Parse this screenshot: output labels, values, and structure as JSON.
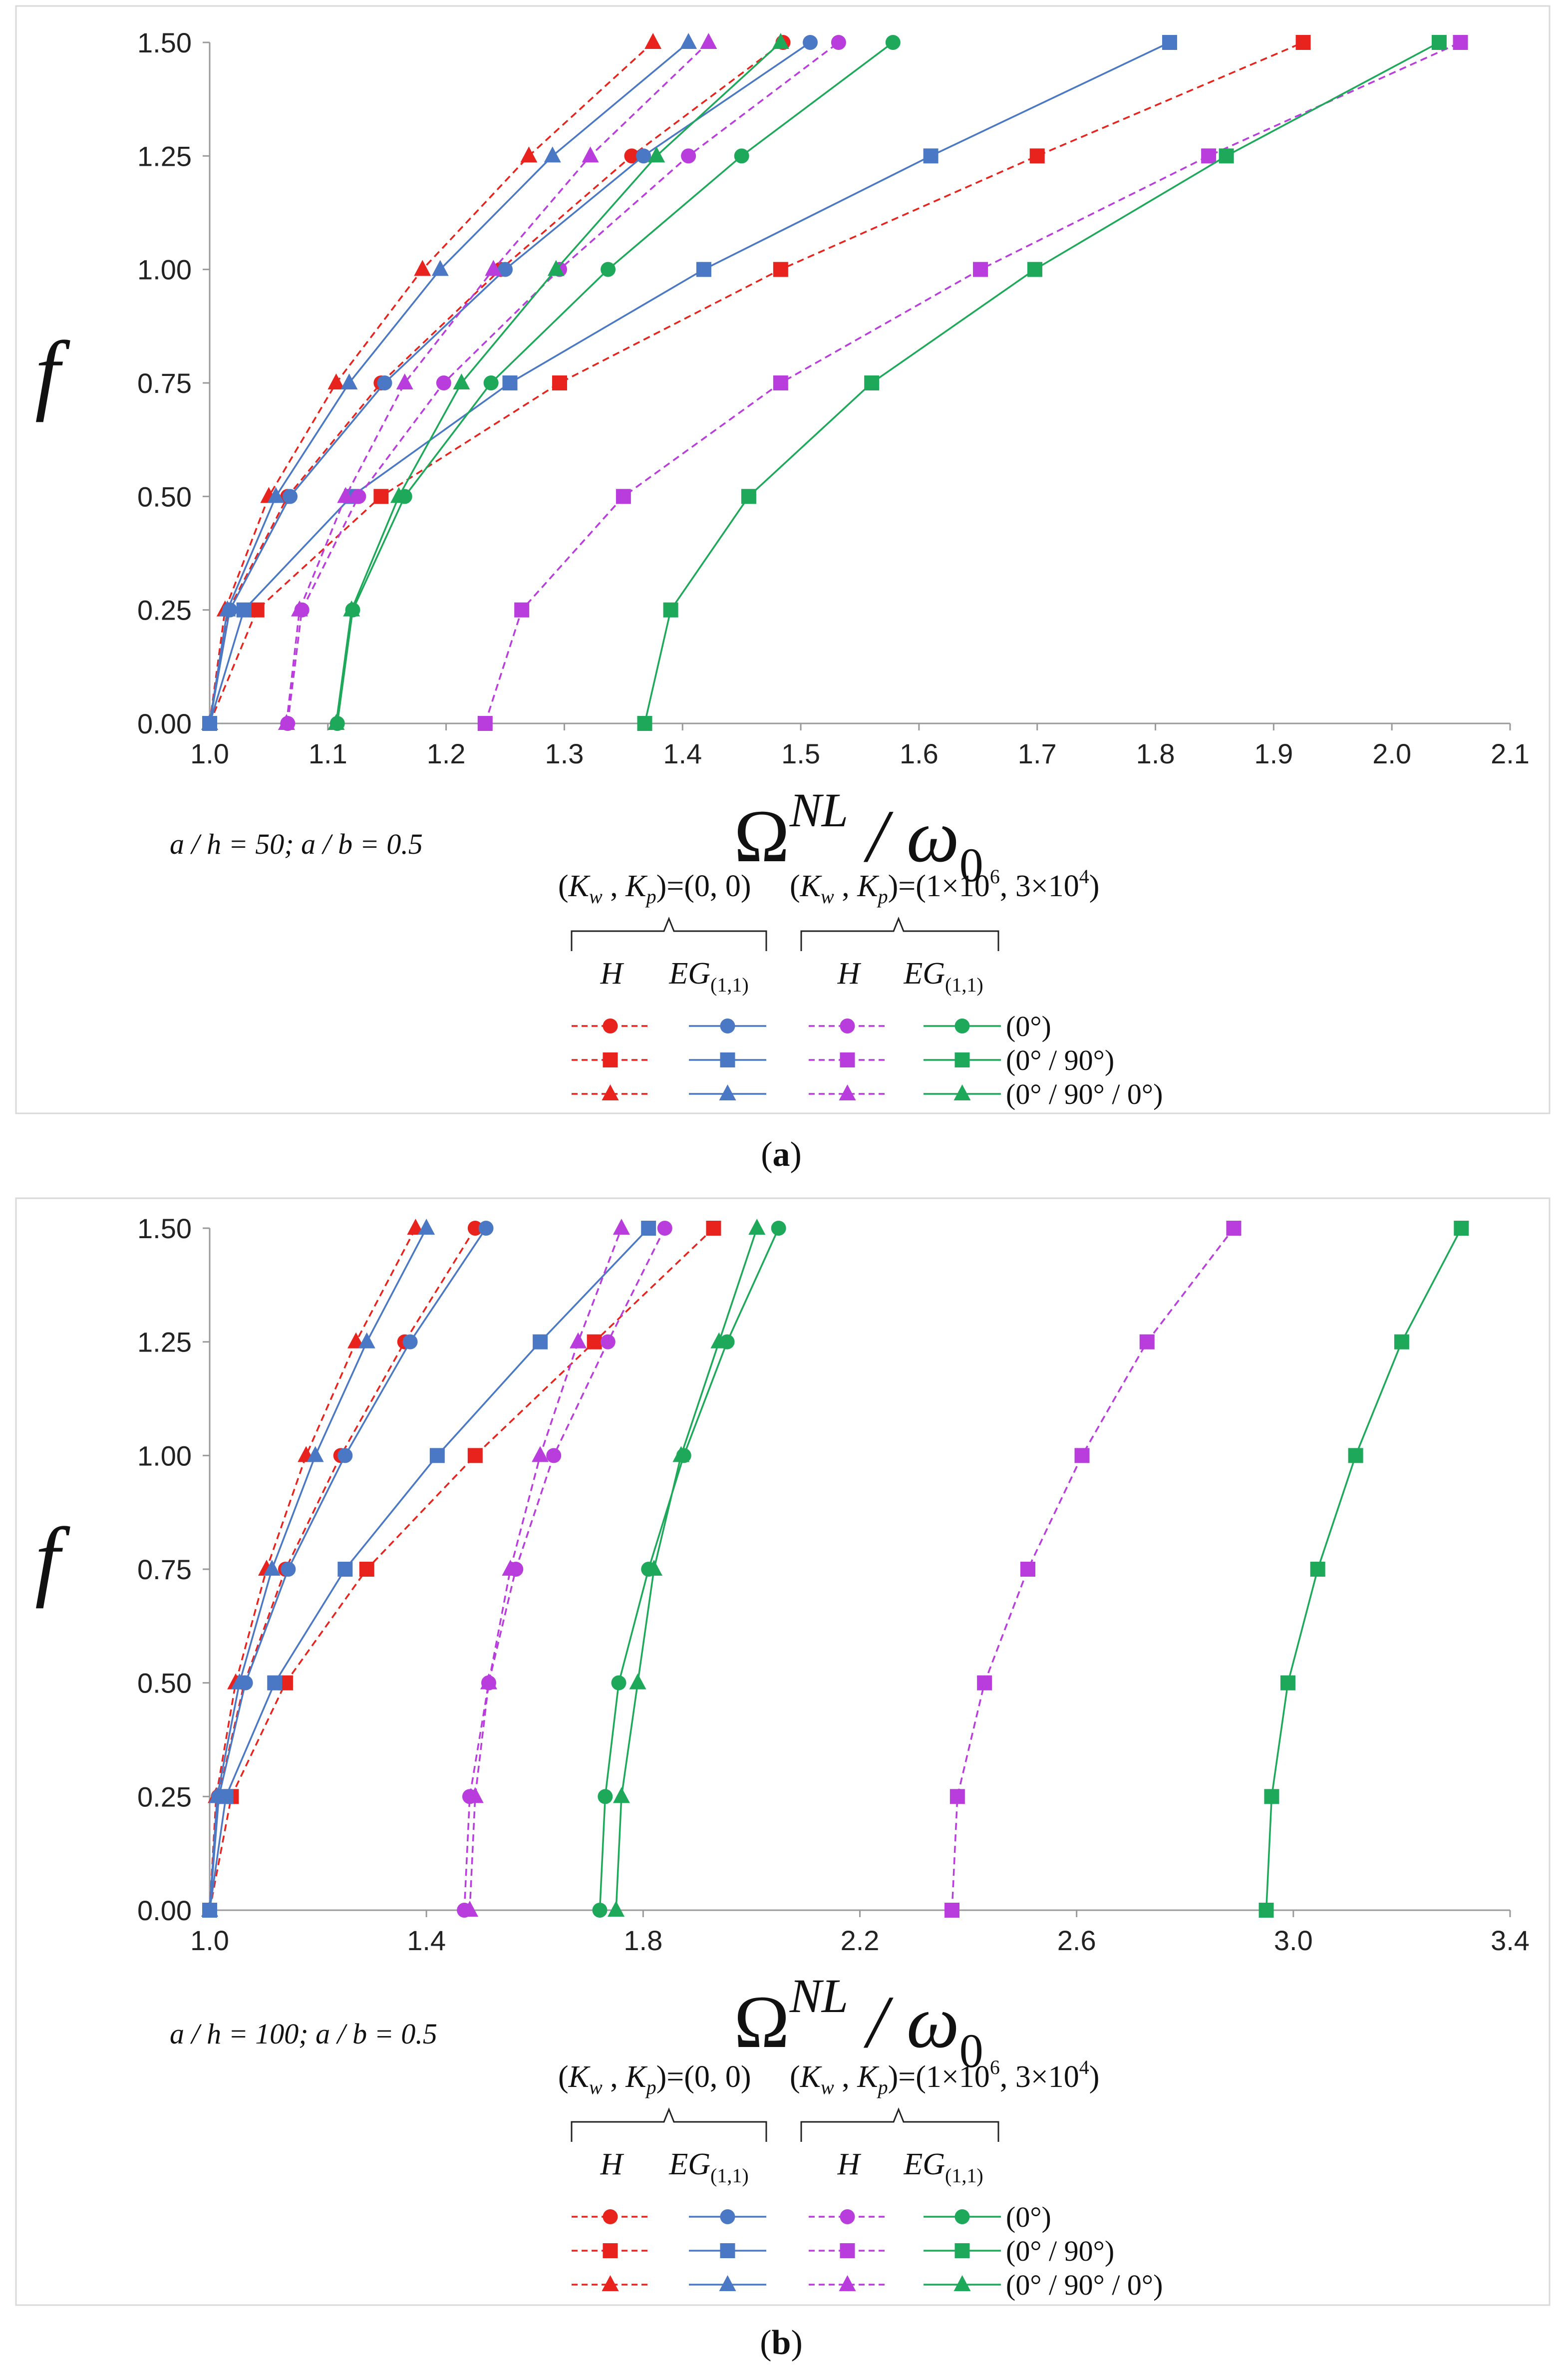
{
  "chart_data": [
    {
      "type": "line",
      "panel_label": "a",
      "xlim": [
        1.0,
        2.1
      ],
      "ylim": [
        0.0,
        1.5
      ],
      "xticks": [
        "1.0",
        "1.1",
        "1.2",
        "1.3",
        "1.4",
        "1.5",
        "1.6",
        "1.7",
        "1.8",
        "1.9",
        "2.0",
        "2.1"
      ],
      "yticks": [
        "0.00",
        "0.25",
        "0.50",
        "0.75",
        "1.00",
        "1.25",
        "1.50"
      ],
      "ylabel": "f",
      "xlabel": {
        "base": "Ω",
        "sup": "NL",
        "mid": " / ω",
        "sub": "0"
      },
      "note": "a / h = 50;  a / b = 0.5",
      "f": [
        0,
        0.25,
        0.5,
        0.75,
        1.0,
        1.25,
        1.5
      ],
      "series": [
        {
          "name": "H (Kw,Kp)=(0,0) (0°)",
          "color": "#e8231d",
          "marker": "circle",
          "dashed": true,
          "x": [
            1.0,
            1.016,
            1.066,
            1.145,
            1.246,
            1.357,
            1.485
          ]
        },
        {
          "name": "H (Kw,Kp)=(0,0) (0°/90°)",
          "color": "#e8231d",
          "marker": "square",
          "dashed": true,
          "x": [
            1.0,
            1.04,
            1.145,
            1.296,
            1.483,
            1.7,
            1.925
          ]
        },
        {
          "name": "H (Kw,Kp)=(0,0) (0°/90°/0°)",
          "color": "#e8231d",
          "marker": "triangle",
          "dashed": true,
          "x": [
            1.0,
            1.013,
            1.05,
            1.107,
            1.18,
            1.27,
            1.375
          ]
        },
        {
          "name": "EG(1,1) (Kw,Kp)=(0,0) (0°)",
          "color": "#4a78c4",
          "marker": "circle",
          "dashed": false,
          "x": [
            1.0,
            1.017,
            1.068,
            1.148,
            1.25,
            1.367,
            1.508
          ]
        },
        {
          "name": "EG(1,1) (Kw,Kp)=(0,0) (0°/90°)",
          "color": "#4a78c4",
          "marker": "square",
          "dashed": false,
          "x": [
            1.0,
            1.029,
            1.12,
            1.254,
            1.418,
            1.61,
            1.812
          ]
        },
        {
          "name": "EG(1,1) (Kw,Kp)=(0,0) (0°/90°/0°)",
          "color": "#4a78c4",
          "marker": "triangle",
          "dashed": false,
          "x": [
            1.0,
            1.015,
            1.056,
            1.118,
            1.195,
            1.29,
            1.405
          ]
        },
        {
          "name": "H (Kw,Kp)=(1e6,3e4) (0°)",
          "color": "#b83ddc",
          "marker": "circle",
          "dashed": true,
          "x": [
            1.066,
            1.078,
            1.126,
            1.198,
            1.296,
            1.405,
            1.532
          ]
        },
        {
          "name": "H (Kw,Kp)=(1e6,3e4) (0°/90°)",
          "color": "#b83ddc",
          "marker": "square",
          "dashed": true,
          "x": [
            1.233,
            1.264,
            1.35,
            1.483,
            1.652,
            1.845,
            2.058
          ]
        },
        {
          "name": "H (Kw,Kp)=(1e6,3e4) (0°/90°/0°)",
          "color": "#b83ddc",
          "marker": "triangle",
          "dashed": true,
          "x": [
            1.065,
            1.076,
            1.115,
            1.165,
            1.24,
            1.322,
            1.422
          ]
        },
        {
          "name": "EG(1,1) (Kw,Kp)=(1e6,3e4) (0°)",
          "color": "#1ea95a",
          "marker": "circle",
          "dashed": false,
          "x": [
            1.108,
            1.121,
            1.165,
            1.238,
            1.337,
            1.45,
            1.578
          ]
        },
        {
          "name": "EG(1,1) (Kw,Kp)=(1e6,3e4) (0°/90°)",
          "color": "#1ea95a",
          "marker": "square",
          "dashed": false,
          "x": [
            1.368,
            1.39,
            1.456,
            1.56,
            1.698,
            1.86,
            2.04
          ]
        },
        {
          "name": "EG(1,1) (Kw,Kp)=(1e6,3e4) (0°/90°/0°)",
          "color": "#1ea95a",
          "marker": "triangle",
          "dashed": false,
          "x": [
            1.107,
            1.12,
            1.16,
            1.213,
            1.293,
            1.378,
            1.483
          ]
        }
      ]
    },
    {
      "type": "line",
      "panel_label": "b",
      "xlim": [
        1.0,
        3.4
      ],
      "ylim": [
        0.0,
        1.5
      ],
      "xticks": [
        "1.0",
        "1.4",
        "1.8",
        "2.2",
        "2.6",
        "3.0",
        "3.4"
      ],
      "yticks": [
        "0.00",
        "0.25",
        "0.50",
        "0.75",
        "1.00",
        "1.25",
        "1.50"
      ],
      "ylabel": "f",
      "xlabel": {
        "base": "Ω",
        "sup": "NL",
        "mid": " / ω",
        "sub": "0"
      },
      "note": "a / h = 100;  a / b = 0.5",
      "f": [
        0,
        0.25,
        0.5,
        0.75,
        1.0,
        1.25,
        1.5
      ],
      "series": [
        {
          "name": "H (Kw,Kp)=(0,0) (0°)",
          "color": "#e8231d",
          "marker": "circle",
          "dashed": true,
          "x": [
            1.0,
            1.016,
            1.064,
            1.14,
            1.242,
            1.36,
            1.49
          ]
        },
        {
          "name": "H (Kw,Kp)=(0,0) (0°/90°)",
          "color": "#e8231d",
          "marker": "square",
          "dashed": true,
          "x": [
            1.0,
            1.04,
            1.14,
            1.29,
            1.49,
            1.71,
            1.93
          ]
        },
        {
          "name": "H (Kw,Kp)=(0,0) (0°/90°/0°)",
          "color": "#e8231d",
          "marker": "triangle",
          "dashed": true,
          "x": [
            1.0,
            1.012,
            1.048,
            1.105,
            1.178,
            1.27,
            1.38
          ]
        },
        {
          "name": "EG(1,1) (Kw,Kp)=(0,0) (0°)",
          "color": "#4a78c4",
          "marker": "circle",
          "dashed": false,
          "x": [
            1.0,
            1.017,
            1.066,
            1.145,
            1.25,
            1.37,
            1.51
          ]
        },
        {
          "name": "EG(1,1) (Kw,Kp)=(0,0) (0°/90°)",
          "color": "#4a78c4",
          "marker": "square",
          "dashed": false,
          "x": [
            1.0,
            1.03,
            1.12,
            1.25,
            1.42,
            1.61,
            1.81
          ]
        },
        {
          "name": "EG(1,1) (Kw,Kp)=(0,0) (0°/90°/0°)",
          "color": "#4a78c4",
          "marker": "triangle",
          "dashed": false,
          "x": [
            1.0,
            1.014,
            1.055,
            1.115,
            1.195,
            1.29,
            1.4
          ]
        },
        {
          "name": "H (Kw,Kp)=(1e6,3e4) (0°)",
          "color": "#b83ddc",
          "marker": "circle",
          "dashed": true,
          "x": [
            1.47,
            1.48,
            1.515,
            1.565,
            1.635,
            1.735,
            1.84
          ]
        },
        {
          "name": "H (Kw,Kp)=(1e6,3e4) (0°/90°)",
          "color": "#b83ddc",
          "marker": "square",
          "dashed": true,
          "x": [
            2.37,
            2.38,
            2.43,
            2.51,
            2.61,
            2.73,
            2.89
          ]
        },
        {
          "name": "H (Kw,Kp)=(1e6,3e4) (0°/90°/0°)",
          "color": "#b83ddc",
          "marker": "triangle",
          "dashed": true,
          "x": [
            1.48,
            1.49,
            1.515,
            1.555,
            1.61,
            1.68,
            1.76
          ]
        },
        {
          "name": "EG(1,1) (Kw,Kp)=(1e6,3e4) (0°)",
          "color": "#1ea95a",
          "marker": "circle",
          "dashed": false,
          "x": [
            1.72,
            1.73,
            1.755,
            1.81,
            1.875,
            1.955,
            2.05
          ]
        },
        {
          "name": "EG(1,1) (Kw,Kp)=(1e6,3e4) (0°/90°)",
          "color": "#1ea95a",
          "marker": "square",
          "dashed": false,
          "x": [
            2.95,
            2.96,
            2.99,
            3.045,
            3.115,
            3.2,
            3.31
          ]
        },
        {
          "name": "EG(1,1) (Kw,Kp)=(1e6,3e4) (0°/90°/0°)",
          "color": "#1ea95a",
          "marker": "triangle",
          "dashed": false,
          "x": [
            1.75,
            1.76,
            1.79,
            1.82,
            1.87,
            1.94,
            2.01
          ]
        }
      ]
    }
  ],
  "legend": {
    "group1": "(0, 0)",
    "group2_kw": "1×10",
    "group2_kw_exp": "6",
    "group2_kp": "3×10",
    "group2_kp_exp": "4",
    "col_h": "H",
    "col_eg": "EG",
    "col_eg_sub": "(1,1)",
    "rows": [
      "(0°)",
      "(0° / 90°)",
      "(0° / 90° / 0°)"
    ]
  },
  "colors": {
    "red": "#e8231d",
    "blue": "#4a78c4",
    "purple": "#b83ddc",
    "green": "#1ea95a",
    "axis": "#9a9a9a",
    "frame": "#d9d9d9"
  }
}
